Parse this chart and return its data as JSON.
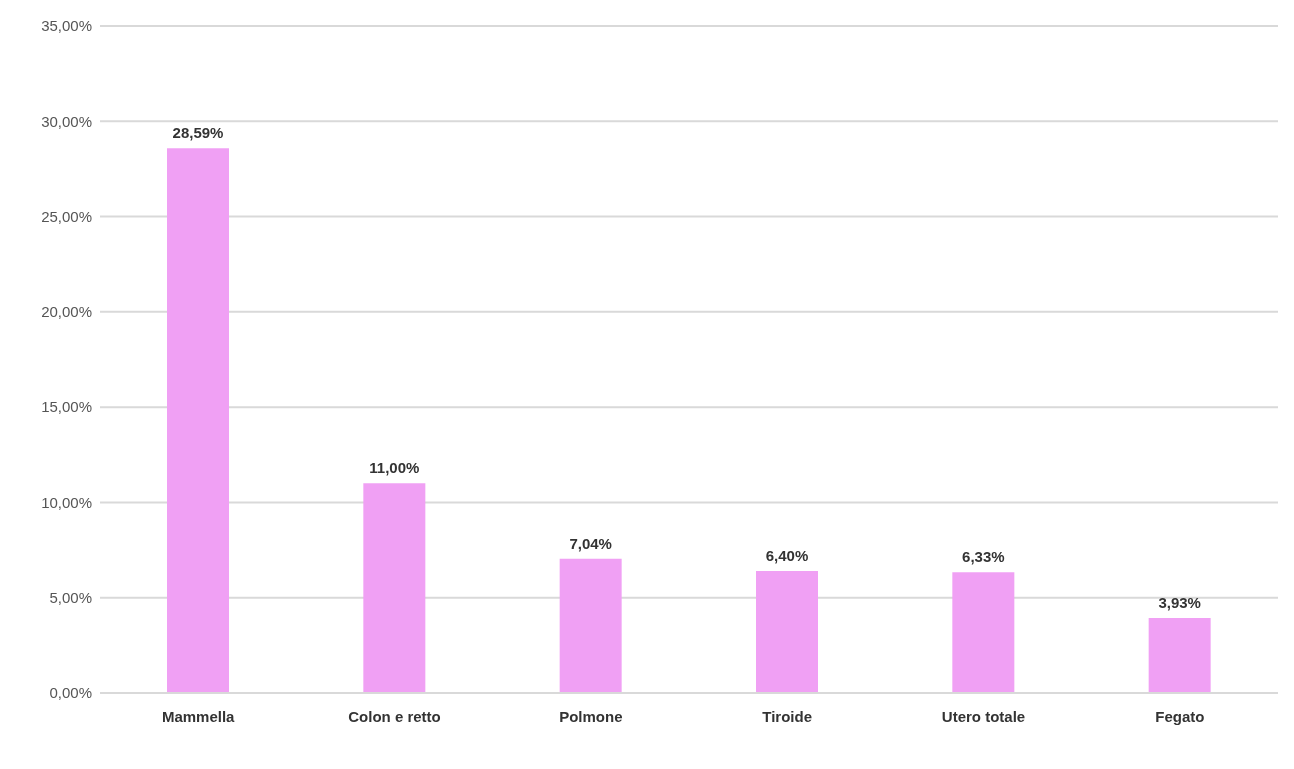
{
  "chart_data": {
    "type": "bar",
    "categories": [
      "Mammella",
      "Colon e retto",
      "Polmone",
      "Tiroide",
      "Utero totale",
      "Fegato"
    ],
    "values": [
      28.59,
      11.0,
      7.04,
      6.4,
      6.33,
      3.93
    ],
    "value_labels": [
      "28,59%",
      "11,00%",
      "7,04%",
      "6,40%",
      "6,33%",
      "3,93%"
    ],
    "color": "#f0a0f4",
    "ylim": [
      0,
      35
    ],
    "yticks": [
      {
        "value": 0,
        "label": "0,00%"
      },
      {
        "value": 5,
        "label": "5,00%"
      },
      {
        "value": 10,
        "label": "10,00%"
      },
      {
        "value": 15,
        "label": "15,00%"
      },
      {
        "value": 20,
        "label": "20,00%"
      },
      {
        "value": 25,
        "label": "25,00%"
      },
      {
        "value": 30,
        "label": "30,00%"
      },
      {
        "value": 35,
        "label": "35,00%"
      }
    ],
    "grid": "y"
  }
}
